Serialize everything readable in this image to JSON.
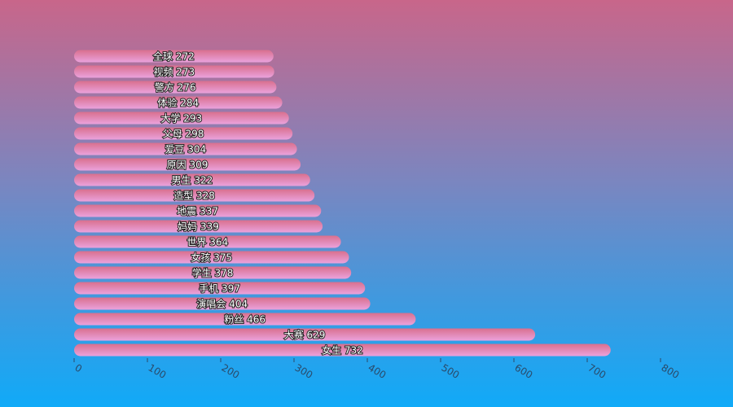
{
  "chart_data": {
    "type": "bar",
    "orientation": "horizontal",
    "categories": [
      "全球",
      "视频",
      "警方",
      "体验",
      "大学",
      "父母",
      "爱豆",
      "原因",
      "男生",
      "造型",
      "地震",
      "妈妈",
      "世界",
      "女孩",
      "学生",
      "手机",
      "演唱会",
      "粉丝",
      "大赛",
      "女生"
    ],
    "values": [
      272,
      273,
      276,
      284,
      293,
      298,
      304,
      309,
      322,
      328,
      337,
      339,
      364,
      375,
      378,
      397,
      404,
      466,
      629,
      732
    ],
    "xlim": [
      0,
      800
    ],
    "xticks": [
      "0",
      "100",
      "200",
      "300",
      "400",
      "500",
      "600",
      "700",
      "800"
    ],
    "grid": false,
    "colors": {
      "bar_top": "#d9708e",
      "bar_bottom": "#eaa2dc",
      "background_top": "#c8668a",
      "background_bottom": "#10aaf8"
    }
  }
}
